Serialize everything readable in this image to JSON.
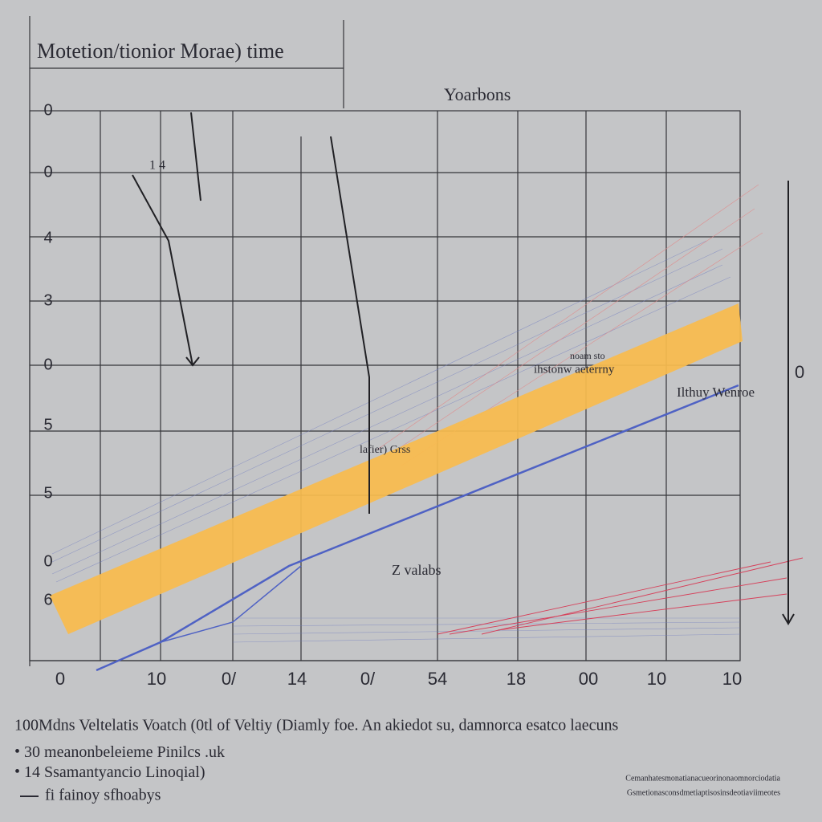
{
  "header": {
    "title": "Motetion/tionior Morae) time",
    "legend_label": "Yoarbons"
  },
  "y_axis_labels": [
    "0",
    "0",
    "4",
    "3",
    "0",
    "5",
    "5",
    "0",
    "6"
  ],
  "x_axis_labels": [
    "0",
    "10",
    "0/",
    "14",
    "0/",
    "54",
    "18",
    "00",
    "10",
    "10"
  ],
  "annotations": {
    "band_top": "noam sto",
    "band_main": "ihstonw aeterrny",
    "band_lower": "lafier) Grss",
    "blue_line": "Ilthuy Wenroe",
    "bottom": "Z valabs",
    "left_arrow": "1 4",
    "right_axis": "0"
  },
  "footer": {
    "caption": "100Mdns Veltelatis Voatch (0tl of Veltiy (Diamly foe. An akiedot su, damnorca esatco laecuns",
    "items": [
      "30 meanonbeleieme Pinilcs .uk",
      "14 Ssamantyancio Linoqial)",
      "fi fainoy sfhoabys"
    ],
    "notes": [
      "Cemanhatesmonatianacueorinonaomnorciodatia",
      "Gsmetionasconsdmetiaptisosinsdeotiaviimeotes"
    ]
  }
}
